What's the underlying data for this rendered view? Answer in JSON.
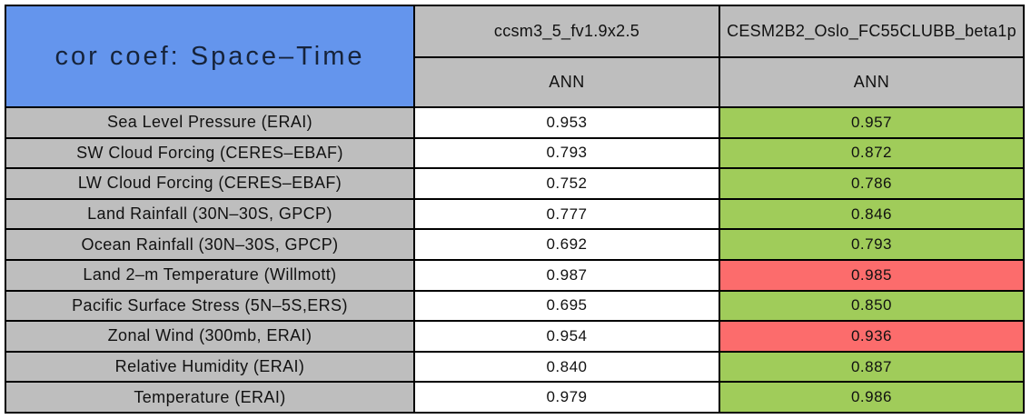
{
  "colors": {
    "title_bg": "#6495ED",
    "header_bg": "#BEBEBE",
    "label_bg": "#BEBEBE",
    "value_bg": "#FFFFFF",
    "better_bg": "#A0CC5A",
    "worse_bg": "#FC6C6C",
    "border": "#000000"
  },
  "chart_data": {
    "type": "table",
    "title": "cor coef: Space–Time",
    "header": {
      "models": [
        "ccsm3_5_fv1.9x2.5",
        "CESM2B2_Oslo_FC55CLUBB_beta1p"
      ],
      "seasons": [
        "ANN",
        "ANN"
      ]
    },
    "rows": [
      {
        "label": "Sea Level Pressure (ERAI)",
        "values": [
          "0.953",
          "0.957"
        ],
        "statuses": [
          "neutral",
          "better"
        ]
      },
      {
        "label": "SW Cloud Forcing (CERES–EBAF)",
        "values": [
          "0.793",
          "0.872"
        ],
        "statuses": [
          "neutral",
          "better"
        ]
      },
      {
        "label": "LW Cloud Forcing (CERES–EBAF)",
        "values": [
          "0.752",
          "0.786"
        ],
        "statuses": [
          "neutral",
          "better"
        ]
      },
      {
        "label": "Land Rainfall (30N–30S, GPCP)",
        "values": [
          "0.777",
          "0.846"
        ],
        "statuses": [
          "neutral",
          "better"
        ]
      },
      {
        "label": "Ocean Rainfall (30N–30S, GPCP)",
        "values": [
          "0.692",
          "0.793"
        ],
        "statuses": [
          "neutral",
          "better"
        ]
      },
      {
        "label": "Land 2–m Temperature (Willmott)",
        "values": [
          "0.987",
          "0.985"
        ],
        "statuses": [
          "neutral",
          "worse"
        ]
      },
      {
        "label": "Pacific Surface Stress (5N–5S,ERS)",
        "values": [
          "0.695",
          "0.850"
        ],
        "statuses": [
          "neutral",
          "better"
        ]
      },
      {
        "label": "Zonal Wind (300mb, ERAI)",
        "values": [
          "0.954",
          "0.936"
        ],
        "statuses": [
          "neutral",
          "worse"
        ]
      },
      {
        "label": "Relative Humidity (ERAI)",
        "values": [
          "0.840",
          "0.887"
        ],
        "statuses": [
          "neutral",
          "better"
        ]
      },
      {
        "label": "Temperature (ERAI)",
        "values": [
          "0.979",
          "0.986"
        ],
        "statuses": [
          "neutral",
          "better"
        ]
      }
    ]
  }
}
